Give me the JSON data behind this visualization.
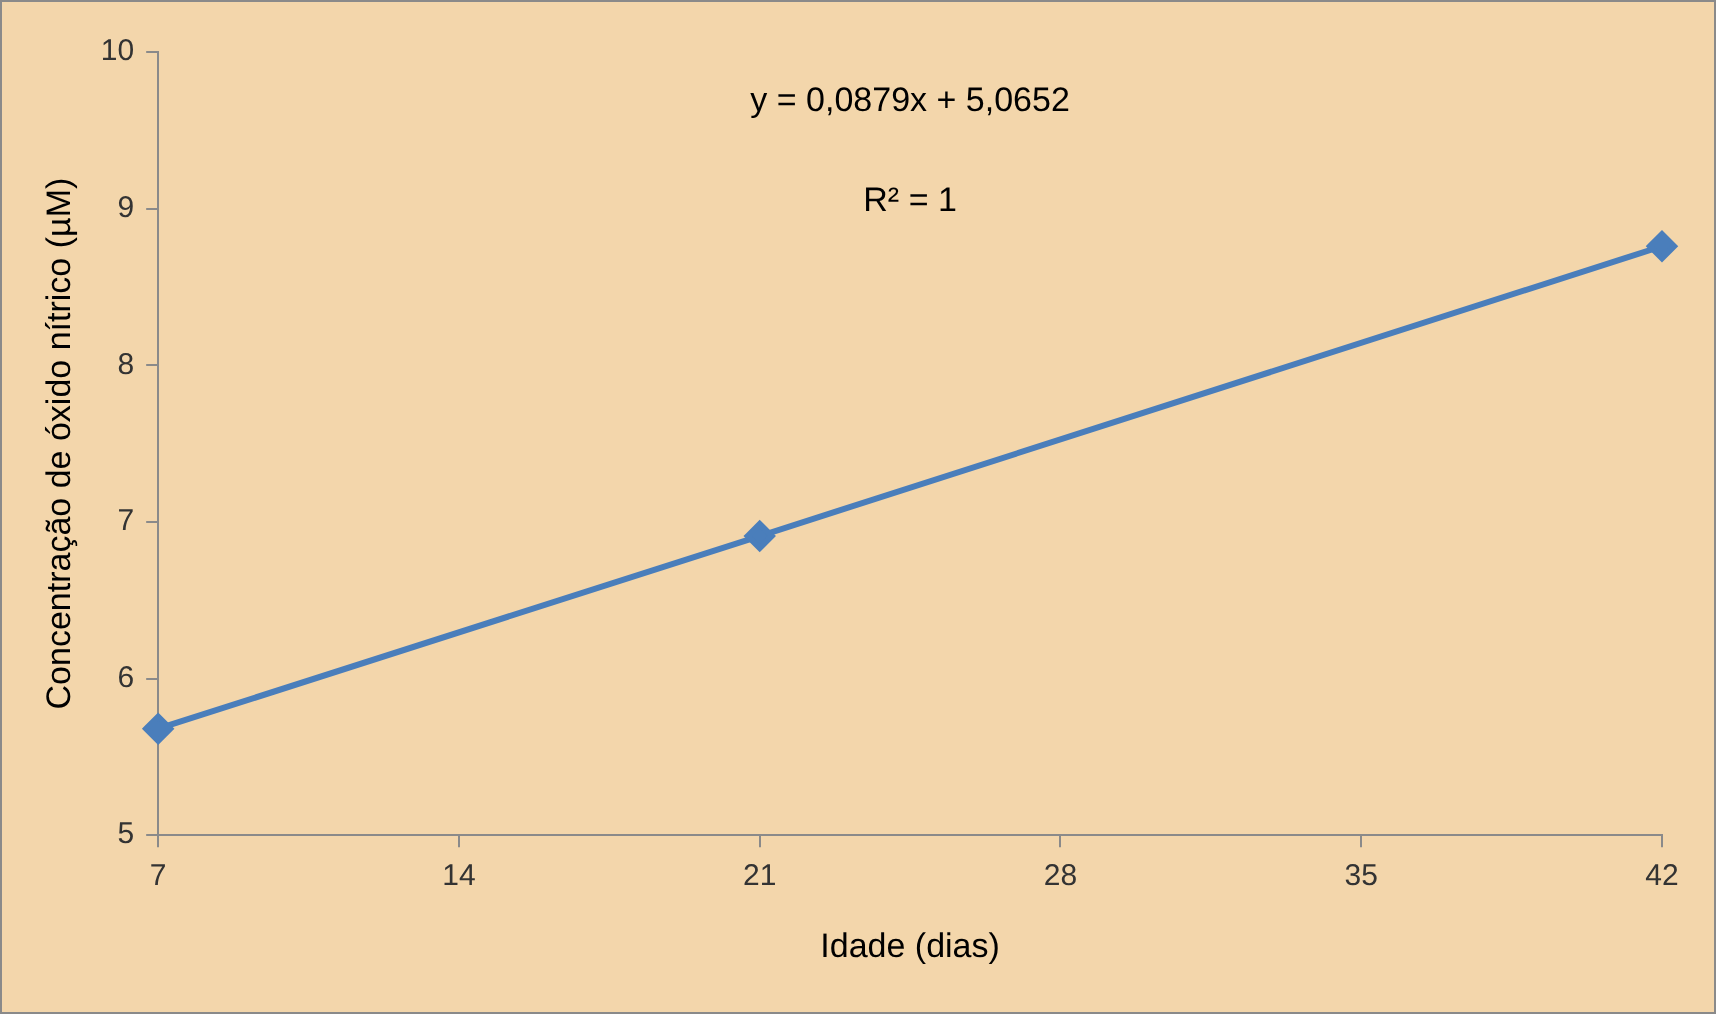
{
  "chart_data": {
    "type": "line",
    "xlabel": "Idade (dias)",
    "ylabel": "Concentração de óxido nítrico (µM)",
    "x": [
      7,
      21,
      42
    ],
    "series": [
      {
        "color": "#4a7ebb",
        "values": [
          5.68,
          6.91,
          8.76
        ]
      }
    ],
    "xlim": [
      7,
      42
    ],
    "xticks": [
      7,
      14,
      21,
      28,
      35,
      42
    ],
    "ylim": [
      5,
      10
    ],
    "yticks": [
      5,
      6,
      7,
      8,
      9,
      10
    ],
    "annotations": [
      "y = 0,0879x + 5,0652",
      "R² = 1"
    ],
    "grid": false,
    "legend": false,
    "marker": "diamond",
    "line_style": "solid"
  }
}
